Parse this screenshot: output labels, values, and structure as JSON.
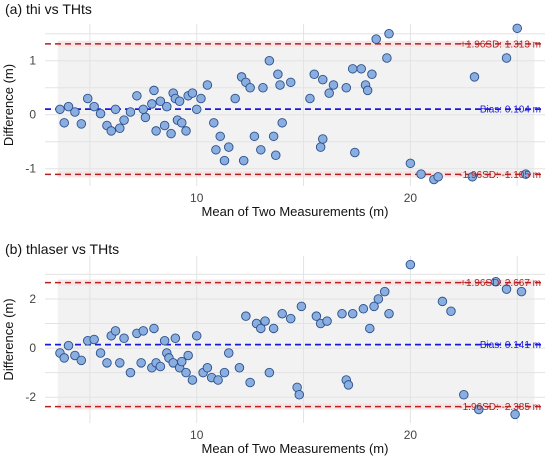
{
  "colors": {
    "point_fill": "#8aaee0",
    "point_stroke": "#2a4f8a",
    "bias_line": "#1a1adf",
    "loa_line": "#b22222",
    "band_fill": "#f6dede",
    "plot_bg": "#f2f2f2"
  },
  "chart_data": [
    {
      "type": "scatter",
      "title": "(a) thi vs THts",
      "xlabel": "Mean of Two Measurements (m)",
      "ylabel": "Difference (m)",
      "xlim": [
        2.9,
        26.3
      ],
      "ylim": [
        -1.32,
        1.68
      ],
      "xticks": [
        10,
        20
      ],
      "yticks": [
        -1,
        0,
        1
      ],
      "grid": true,
      "bias": 0.104,
      "upper_loa": 1.313,
      "lower_loa": -1.105,
      "labels": {
        "upper": "+1.96SD: 1.313 m",
        "bias": "Bias: 0.104 m",
        "lower": "-1.96SD: -1.105 m"
      },
      "points": [
        [
          3.6,
          0.1
        ],
        [
          3.8,
          -0.15
        ],
        [
          4.0,
          0.15
        ],
        [
          4.3,
          0.05
        ],
        [
          4.6,
          -0.17
        ],
        [
          4.9,
          0.3
        ],
        [
          5.2,
          0.15
        ],
        [
          5.5,
          0.02
        ],
        [
          5.8,
          -0.2
        ],
        [
          6.0,
          -0.3
        ],
        [
          6.2,
          0.1
        ],
        [
          6.4,
          -0.25
        ],
        [
          6.6,
          -0.1
        ],
        [
          6.9,
          0.05
        ],
        [
          7.2,
          0.35
        ],
        [
          7.5,
          0.1
        ],
        [
          7.6,
          -0.05
        ],
        [
          7.9,
          0.2
        ],
        [
          8.0,
          0.45
        ],
        [
          8.1,
          -0.3
        ],
        [
          8.3,
          0.25
        ],
        [
          8.5,
          -0.2
        ],
        [
          8.6,
          0.15
        ],
        [
          8.8,
          -0.35
        ],
        [
          8.9,
          0.4
        ],
        [
          9.0,
          0.3
        ],
        [
          9.1,
          -0.1
        ],
        [
          9.2,
          0.25
        ],
        [
          9.3,
          -0.15
        ],
        [
          9.5,
          -0.3
        ],
        [
          9.6,
          0.35
        ],
        [
          9.8,
          0.4
        ],
        [
          10.0,
          0.1
        ],
        [
          10.2,
          0.3
        ],
        [
          10.5,
          0.55
        ],
        [
          10.8,
          -0.15
        ],
        [
          10.9,
          -0.65
        ],
        [
          11.1,
          -0.4
        ],
        [
          11.3,
          -0.85
        ],
        [
          11.5,
          -0.6
        ],
        [
          11.8,
          0.3
        ],
        [
          12.1,
          0.7
        ],
        [
          12.2,
          -0.85
        ],
        [
          12.3,
          0.6
        ],
        [
          12.5,
          0.5
        ],
        [
          12.7,
          -0.4
        ],
        [
          13.0,
          -0.65
        ],
        [
          13.1,
          0.5
        ],
        [
          13.4,
          1.0
        ],
        [
          13.6,
          -0.4
        ],
        [
          13.7,
          -0.75
        ],
        [
          13.8,
          0.75
        ],
        [
          13.9,
          0.55
        ],
        [
          14.0,
          -0.15
        ],
        [
          14.4,
          0.6
        ],
        [
          15.3,
          0.3
        ],
        [
          15.5,
          0.75
        ],
        [
          15.8,
          -0.6
        ],
        [
          15.9,
          -0.45
        ],
        [
          15.9,
          0.65
        ],
        [
          16.2,
          0.4
        ],
        [
          16.4,
          0.55
        ],
        [
          17.0,
          0.5
        ],
        [
          17.3,
          0.85
        ],
        [
          17.4,
          -0.7
        ],
        [
          17.7,
          0.85
        ],
        [
          17.9,
          0.55
        ],
        [
          18.0,
          0.45
        ],
        [
          18.2,
          0.75
        ],
        [
          18.4,
          1.4
        ],
        [
          18.9,
          1.05
        ],
        [
          19.0,
          1.5
        ],
        [
          20.0,
          -0.9
        ],
        [
          20.5,
          -1.1
        ],
        [
          21.1,
          -1.2
        ],
        [
          21.3,
          -1.15
        ],
        [
          22.9,
          -1.15
        ],
        [
          23.0,
          0.7
        ],
        [
          24.5,
          1.05
        ],
        [
          25.0,
          1.6
        ],
        [
          25.4,
          -1.1
        ]
      ]
    },
    {
      "type": "scatter",
      "title": "(b) thlaser vs THts",
      "xlabel": "Mean of Two Measurements (m)",
      "ylabel": "Difference (m)",
      "xlim": [
        2.9,
        26.3
      ],
      "ylim": [
        -3.05,
        3.75
      ],
      "xticks": [
        10,
        20
      ],
      "yticks": [
        -2,
        0,
        2
      ],
      "grid": true,
      "bias": 0.141,
      "upper_loa": 2.667,
      "lower_loa": -2.385,
      "labels": {
        "upper": "+1.96SD: 2.667 m",
        "bias": "Bias: 0.141 m",
        "lower": "-1.96SD: -2.385 m"
      },
      "points": [
        [
          3.6,
          -0.2
        ],
        [
          3.8,
          -0.4
        ],
        [
          4.0,
          0.1
        ],
        [
          4.3,
          -0.3
        ],
        [
          4.6,
          -0.5
        ],
        [
          4.9,
          0.3
        ],
        [
          5.2,
          0.35
        ],
        [
          5.5,
          -0.2
        ],
        [
          5.8,
          -0.6
        ],
        [
          6.0,
          0.5
        ],
        [
          6.2,
          0.7
        ],
        [
          6.4,
          -0.6
        ],
        [
          6.6,
          0.4
        ],
        [
          6.9,
          -1.0
        ],
        [
          7.2,
          0.6
        ],
        [
          7.4,
          -0.6
        ],
        [
          7.5,
          0.7
        ],
        [
          7.9,
          -0.8
        ],
        [
          8.0,
          0.8
        ],
        [
          8.1,
          -0.6
        ],
        [
          8.3,
          -0.75
        ],
        [
          8.5,
          0.3
        ],
        [
          8.6,
          -0.2
        ],
        [
          8.7,
          -0.4
        ],
        [
          8.9,
          -0.6
        ],
        [
          9.0,
          0.4
        ],
        [
          9.2,
          -0.8
        ],
        [
          9.3,
          -0.55
        ],
        [
          9.5,
          -1.0
        ],
        [
          9.6,
          -0.3
        ],
        [
          9.8,
          -1.3
        ],
        [
          10.0,
          0.5
        ],
        [
          10.3,
          -1.0
        ],
        [
          10.5,
          -0.8
        ],
        [
          10.7,
          -1.2
        ],
        [
          11.0,
          -1.3
        ],
        [
          11.3,
          -1.0
        ],
        [
          11.5,
          -0.2
        ],
        [
          12.0,
          -0.8
        ],
        [
          12.3,
          1.3
        ],
        [
          12.5,
          -1.4
        ],
        [
          12.8,
          1.0
        ],
        [
          13.0,
          0.8
        ],
        [
          13.2,
          1.1
        ],
        [
          13.4,
          -1.0
        ],
        [
          13.6,
          0.8
        ],
        [
          14.0,
          1.4
        ],
        [
          14.4,
          1.2
        ],
        [
          14.7,
          -1.6
        ],
        [
          14.8,
          -1.9
        ],
        [
          14.9,
          1.7
        ],
        [
          15.6,
          1.3
        ],
        [
          15.8,
          1.0
        ],
        [
          16.1,
          1.1
        ],
        [
          16.8,
          1.4
        ],
        [
          17.0,
          -1.3
        ],
        [
          17.1,
          -1.5
        ],
        [
          17.3,
          1.4
        ],
        [
          17.8,
          1.6
        ],
        [
          18.1,
          0.8
        ],
        [
          18.3,
          1.7
        ],
        [
          18.5,
          2.0
        ],
        [
          18.8,
          2.3
        ],
        [
          19.0,
          1.4
        ],
        [
          20.0,
          3.4
        ],
        [
          21.5,
          1.9
        ],
        [
          21.9,
          1.5
        ],
        [
          22.5,
          -1.9
        ],
        [
          23.2,
          -2.5
        ],
        [
          24.0,
          2.7
        ],
        [
          24.5,
          2.4
        ],
        [
          24.9,
          -2.7
        ],
        [
          25.2,
          2.3
        ]
      ]
    }
  ]
}
